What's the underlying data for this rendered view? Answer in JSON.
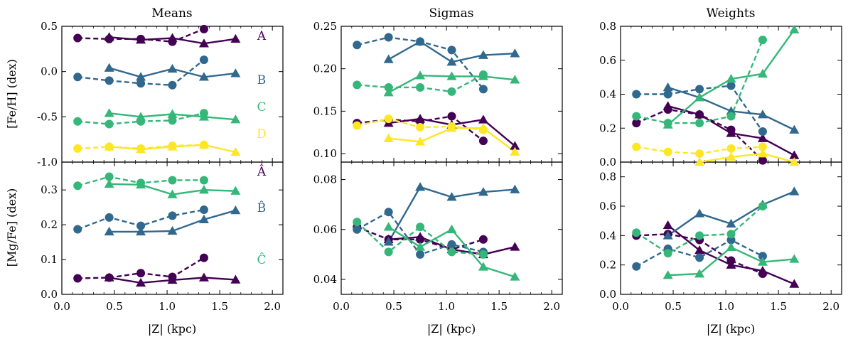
{
  "colors": {
    "A": "#440154",
    "B": "#31688e",
    "C": "#35b779",
    "D": "#fde725"
  },
  "column_titles": [
    "Means",
    "Sigmas",
    "Weights"
  ],
  "row_ylabels": [
    "[Fe/H] (dex)",
    "[Mg/Fe] (dex)"
  ],
  "xlabel": "|Z| (kpc)",
  "chart_data": [
    {
      "type": "line",
      "title": "Means",
      "xlabel": "",
      "ylabel": "[Fe/H] (dex)",
      "xlim": [
        0.0,
        2.1
      ],
      "ylim": [
        -1.0,
        0.5
      ],
      "xticks": [],
      "yticks": [
        "-1.0",
        "-0.5",
        "0.0",
        "0.5"
      ],
      "series": [
        {
          "name": "A",
          "color": "#440154",
          "triangles": {
            "x": [
              0.45,
              0.75,
              1.05,
              1.35,
              1.65
            ],
            "y": [
              0.38,
              0.35,
              0.37,
              0.31,
              0.36
            ]
          },
          "circles": {
            "x": [
              0.15,
              0.45,
              0.75,
              1.05,
              1.35
            ],
            "y": [
              0.37,
              0.36,
              0.36,
              0.33,
              0.47
            ]
          }
        },
        {
          "name": "B",
          "color": "#31688e",
          "triangles": {
            "x": [
              0.45,
              0.75,
              1.05,
              1.35,
              1.65
            ],
            "y": [
              0.04,
              -0.06,
              0.03,
              -0.06,
              -0.02
            ]
          },
          "circles": {
            "x": [
              0.15,
              0.45,
              0.75,
              1.05,
              1.35
            ],
            "y": [
              -0.06,
              -0.1,
              -0.13,
              -0.15,
              0.13
            ]
          }
        },
        {
          "name": "C",
          "color": "#35b779",
          "triangles": {
            "x": [
              0.45,
              0.75,
              1.05,
              1.35,
              1.65
            ],
            "y": [
              -0.46,
              -0.5,
              -0.47,
              -0.5,
              -0.53
            ]
          },
          "circles": {
            "x": [
              0.15,
              0.45,
              0.75,
              1.05,
              1.35
            ],
            "y": [
              -0.55,
              -0.58,
              -0.55,
              -0.54,
              -0.46
            ]
          }
        },
        {
          "name": "D",
          "color": "#fde725",
          "triangles": {
            "x": [
              0.45,
              0.75,
              1.05,
              1.35,
              1.65
            ],
            "y": [
              -0.83,
              -0.86,
              -0.83,
              -0.81,
              -0.89
            ]
          },
          "circles": {
            "x": [
              0.15,
              0.45,
              0.75,
              1.05,
              1.35
            ],
            "y": [
              -0.85,
              -0.83,
              -0.85,
              -0.82,
              -0.81
            ]
          }
        }
      ]
    },
    {
      "type": "line",
      "title": "Sigmas",
      "xlabel": "",
      "ylabel": "",
      "xlim": [
        0.0,
        2.1
      ],
      "ylim": [
        0.09,
        0.25
      ],
      "xticks": [],
      "yticks": [
        "0.10",
        "0.15",
        "0.20",
        "0.25"
      ],
      "series": [
        {
          "name": "A",
          "color": "#440154",
          "triangles": {
            "x": [
              0.45,
              0.75,
              1.05,
              1.35,
              1.65
            ],
            "y": [
              0.136,
              0.141,
              0.134,
              0.14,
              0.109
            ]
          },
          "circles": {
            "x": [
              0.15,
              0.45,
              0.75,
              1.05,
              1.35
            ],
            "y": [
              0.136,
              0.14,
              0.138,
              0.144,
              0.115
            ]
          }
        },
        {
          "name": "B",
          "color": "#31688e",
          "triangles": {
            "x": [
              0.45,
              0.75,
              1.05,
              1.35,
              1.65
            ],
            "y": [
              0.211,
              0.232,
              0.208,
              0.216,
              0.218
            ]
          },
          "circles": {
            "x": [
              0.15,
              0.45,
              0.75,
              1.05,
              1.35
            ],
            "y": [
              0.228,
              0.237,
              0.232,
              0.222,
              0.176
            ]
          }
        },
        {
          "name": "C",
          "color": "#35b779",
          "triangles": {
            "x": [
              0.45,
              0.75,
              1.05,
              1.35,
              1.65
            ],
            "y": [
              0.172,
              0.192,
              0.191,
              0.191,
              0.187
            ]
          },
          "circles": {
            "x": [
              0.15,
              0.45,
              0.75,
              1.05,
              1.35
            ],
            "y": [
              0.181,
              0.178,
              0.178,
              0.173,
              0.193
            ]
          }
        },
        {
          "name": "D",
          "color": "#fde725",
          "triangles": {
            "x": [
              0.45,
              0.75,
              1.05,
              1.35,
              1.65
            ],
            "y": [
              0.118,
              0.114,
              0.13,
              0.13,
              0.102
            ]
          },
          "circles": {
            "x": [
              0.15,
              0.45,
              0.75,
              1.05,
              1.35
            ],
            "y": [
              0.133,
              0.141,
              0.131,
              0.132,
              0.128
            ]
          }
        }
      ]
    },
    {
      "type": "line",
      "title": "Weights",
      "xlabel": "",
      "ylabel": "",
      "xlim": [
        0.0,
        2.1
      ],
      "ylim": [
        0.0,
        0.8
      ],
      "xticks": [],
      "yticks": [
        "0.0",
        "0.2",
        "0.4",
        "0.6",
        "0.8"
      ],
      "series": [
        {
          "name": "A",
          "color": "#440154",
          "triangles": {
            "x": [
              0.45,
              0.75,
              1.05,
              1.35,
              1.65
            ],
            "y": [
              0.33,
              0.28,
              0.17,
              0.14,
              0.04
            ]
          },
          "circles": {
            "x": [
              0.15,
              0.45,
              0.75,
              1.05,
              1.35
            ],
            "y": [
              0.23,
              0.31,
              0.28,
              0.19,
              0.01
            ]
          }
        },
        {
          "name": "B",
          "color": "#31688e",
          "triangles": {
            "x": [
              0.45,
              0.75,
              1.05,
              1.35,
              1.65
            ],
            "y": [
              0.44,
              0.38,
              0.3,
              0.28,
              0.19
            ]
          },
          "circles": {
            "x": [
              0.15,
              0.45,
              0.75,
              1.05,
              1.35
            ],
            "y": [
              0.4,
              0.4,
              0.43,
              0.45,
              0.18
            ]
          }
        },
        {
          "name": "C",
          "color": "#35b779",
          "triangles": {
            "x": [
              0.45,
              0.75,
              1.05,
              1.35,
              1.65
            ],
            "y": [
              0.22,
              0.38,
              0.49,
              0.52,
              0.78
            ]
          },
          "circles": {
            "x": [
              0.15,
              0.45,
              0.75,
              1.05,
              1.35
            ],
            "y": [
              0.27,
              0.23,
              0.23,
              0.27,
              0.72
            ]
          }
        },
        {
          "name": "D",
          "color": "#fde725",
          "triangles": {
            "x": [
              0.75,
              1.05,
              1.35,
              1.65
            ],
            "y": [
              0.0,
              0.03,
              0.05,
              0.0
            ]
          },
          "circles": {
            "x": [
              0.15,
              0.45,
              0.75,
              1.05,
              1.35
            ],
            "y": [
              0.09,
              0.06,
              0.05,
              0.08,
              0.09
            ]
          }
        }
      ]
    },
    {
      "type": "line",
      "title": "",
      "xlabel": "|Z| (kpc)",
      "ylabel": "[Mg/Fe] (dex)",
      "xlim": [
        0.0,
        2.1
      ],
      "ylim": [
        0.0,
        0.38
      ],
      "xticks": [
        "0.0",
        "0.5",
        "1.0",
        "1.5",
        "2.0"
      ],
      "yticks": [
        "0.0",
        "0.1",
        "0.2",
        "0.3"
      ],
      "series": [
        {
          "name": "Â",
          "color": "#440154",
          "triangles": {
            "x": [
              0.45,
              0.75,
              1.05,
              1.35,
              1.65
            ],
            "y": [
              0.048,
              0.033,
              0.041,
              0.048,
              0.042
            ]
          },
          "circles": {
            "x": [
              0.15,
              0.45,
              0.75,
              1.05,
              1.35
            ],
            "y": [
              0.046,
              0.048,
              0.061,
              0.05,
              0.105
            ]
          }
        },
        {
          "name": "B̂",
          "color": "#31688e",
          "triangles": {
            "x": [
              0.45,
              0.75,
              1.05,
              1.35,
              1.65
            ],
            "y": [
              0.18,
              0.18,
              0.182,
              0.215,
              0.241
            ]
          },
          "circles": {
            "x": [
              0.15,
              0.45,
              0.75,
              1.05,
              1.35
            ],
            "y": [
              0.187,
              0.221,
              0.197,
              0.226,
              0.243
            ]
          }
        },
        {
          "name": "Ĉ",
          "color": "#35b779",
          "triangles": {
            "x": [
              0.45,
              0.75,
              1.05,
              1.35,
              1.65
            ],
            "y": [
              0.317,
              0.315,
              0.287,
              0.3,
              0.297
            ]
          },
          "circles": {
            "x": [
              0.15,
              0.45,
              0.75,
              1.05,
              1.35
            ],
            "y": [
              0.312,
              0.338,
              0.32,
              0.328,
              0.328
            ]
          }
        }
      ]
    },
    {
      "type": "line",
      "title": "",
      "xlabel": "|Z| (kpc)",
      "ylabel": "",
      "xlim": [
        0.0,
        2.1
      ],
      "ylim": [
        0.034,
        0.087
      ],
      "xticks": [
        "0.0",
        "0.5",
        "1.0",
        "1.5",
        "2.0"
      ],
      "yticks": [
        "0.04",
        "0.06",
        "0.08"
      ],
      "series": [
        {
          "name": "Â",
          "color": "#440154",
          "triangles": {
            "x": [
              0.45,
              0.75,
              1.05,
              1.35,
              1.65
            ],
            "y": [
              0.056,
              0.057,
              0.052,
              0.05,
              0.053
            ]
          },
          "circles": {
            "x": [
              0.15,
              0.45,
              0.75,
              1.05,
              1.35
            ],
            "y": [
              0.061,
              0.056,
              0.056,
              0.052,
              0.056
            ]
          }
        },
        {
          "name": "B̂",
          "color": "#31688e",
          "triangles": {
            "x": [
              0.45,
              0.75,
              1.05,
              1.35,
              1.65
            ],
            "y": [
              0.055,
              0.077,
              0.073,
              0.075,
              0.076
            ]
          },
          "circles": {
            "x": [
              0.15,
              0.45,
              0.75,
              1.05,
              1.35
            ],
            "y": [
              0.06,
              0.067,
              0.05,
              0.054,
              0.051
            ]
          }
        },
        {
          "name": "Ĉ",
          "color": "#35b779",
          "triangles": {
            "x": [
              0.45,
              0.75,
              1.05,
              1.35,
              1.65
            ],
            "y": [
              0.061,
              0.053,
              0.06,
              0.045,
              0.041
            ]
          },
          "circles": {
            "x": [
              0.15,
              0.45,
              0.75,
              1.05,
              1.35
            ],
            "y": [
              0.063,
              0.051,
              0.061,
              0.051,
              0.05
            ]
          }
        }
      ]
    },
    {
      "type": "line",
      "title": "",
      "xlabel": "|Z| (kpc)",
      "ylabel": "",
      "xlim": [
        0.0,
        2.1
      ],
      "ylim": [
        0.0,
        0.9
      ],
      "xticks": [
        "0.0",
        "0.5",
        "1.0",
        "1.5",
        "2.0"
      ],
      "yticks": [
        "0.0",
        "0.2",
        "0.4",
        "0.6",
        "0.8"
      ],
      "series": [
        {
          "name": "Â",
          "color": "#440154",
          "triangles": {
            "x": [
              0.45,
              0.75,
              1.05,
              1.35,
              1.65
            ],
            "y": [
              0.47,
              0.3,
              0.2,
              0.16,
              0.07
            ]
          },
          "circles": {
            "x": [
              0.15,
              0.45,
              0.75,
              1.05,
              1.35
            ],
            "y": [
              0.4,
              0.41,
              0.37,
              0.23,
              0.14
            ]
          }
        },
        {
          "name": "B̂",
          "color": "#31688e",
          "triangles": {
            "x": [
              0.45,
              0.75,
              1.05,
              1.35,
              1.65
            ],
            "y": [
              0.4,
              0.55,
              0.48,
              0.61,
              0.7
            ]
          },
          "circles": {
            "x": [
              0.15,
              0.45,
              0.75,
              1.05,
              1.35
            ],
            "y": [
              0.19,
              0.31,
              0.25,
              0.37,
              0.26
            ]
          }
        },
        {
          "name": "Ĉ",
          "color": "#35b779",
          "triangles": {
            "x": [
              0.45,
              0.75,
              1.05,
              1.35,
              1.65
            ],
            "y": [
              0.13,
              0.14,
              0.32,
              0.22,
              0.24
            ]
          },
          "circles": {
            "x": [
              0.15,
              0.45,
              0.75,
              1.05,
              1.35
            ],
            "y": [
              0.42,
              0.28,
              0.4,
              0.41,
              0.6
            ]
          }
        }
      ]
    }
  ]
}
